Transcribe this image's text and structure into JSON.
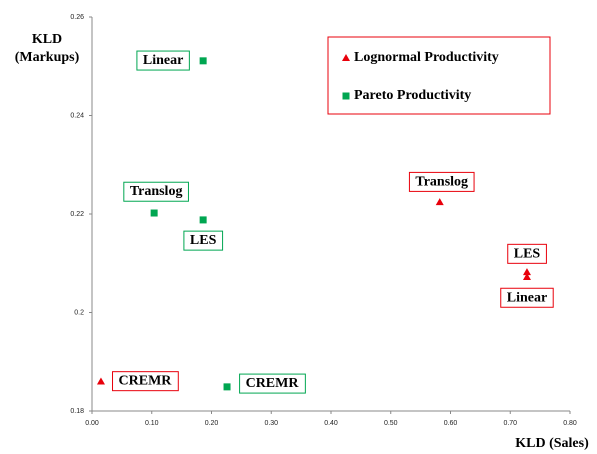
{
  "chart_data": {
    "type": "scatter",
    "xlabel": "KLD (Sales)",
    "ylabel": [
      "KLD",
      "(Markups)"
    ],
    "xlim": [
      0,
      0.8
    ],
    "xticks": [
      {
        "value": 0,
        "label": "0.00"
      },
      {
        "value": 0.1,
        "label": "0.10"
      },
      {
        "value": 0.2,
        "label": "0.20"
      },
      {
        "value": 0.3,
        "label": "0.30"
      },
      {
        "value": 0.4,
        "label": "0.40"
      },
      {
        "value": 0.5,
        "label": "0.50"
      },
      {
        "value": 0.6,
        "label": "0.60"
      },
      {
        "value": 0.7,
        "label": "0.70"
      },
      {
        "value": 0.8,
        "label": "0.80"
      }
    ],
    "ylim": [
      0.18,
      0.26
    ],
    "yticks": [
      {
        "value": 0.18,
        "label": "0.18"
      },
      0.2,
      {
        "value": 0.22,
        "label": "0.22"
      },
      {
        "value": 0.24,
        "label": "0.24"
      },
      {
        "value": 0.26,
        "label": "0.26"
      }
    ],
    "legend": "upper right",
    "series": [
      {
        "name": "Lognormal Productivity",
        "color": "#e8000b",
        "marker": "triangle",
        "x": [
          0.015,
          0.582,
          0.728,
          0.728
        ],
        "y": [
          0.186,
          0.2224,
          0.2082,
          0.2072
        ],
        "point_labels": [
          "CREMR",
          "Translog",
          "LES",
          "Linear"
        ]
      },
      {
        "name": "Pareto Productivity",
        "color": "#00a651",
        "marker": "square",
        "x": [
          0.186,
          0.104,
          0.186,
          0.226
        ],
        "y": [
          0.2511,
          0.2202,
          0.2188,
          0.1849
        ],
        "point_labels": [
          "Linear",
          "Translog",
          "LES",
          "CREMR"
        ]
      }
    ]
  }
}
